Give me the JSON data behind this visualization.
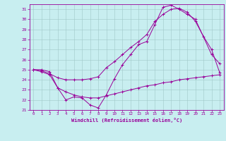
{
  "xlabel": "Windchill (Refroidissement éolien,°C)",
  "bg_color": "#c8eef0",
  "grid_color": "#a0c8c8",
  "line_color": "#990099",
  "xlim_min": -0.5,
  "xlim_max": 23.5,
  "ylim_min": 21.0,
  "ylim_max": 31.5,
  "yticks": [
    21,
    22,
    23,
    24,
    25,
    26,
    27,
    28,
    29,
    30,
    31
  ],
  "xticks": [
    0,
    1,
    2,
    3,
    4,
    5,
    6,
    7,
    8,
    9,
    10,
    11,
    12,
    13,
    14,
    15,
    16,
    17,
    18,
    19,
    20,
    21,
    22,
    23
  ],
  "lines": [
    {
      "x": [
        0,
        1,
        2,
        3,
        4,
        5,
        6,
        7,
        8,
        9,
        10,
        11,
        12,
        13,
        14,
        15,
        16,
        17,
        18,
        19,
        20,
        22,
        23
      ],
      "y": [
        25.0,
        24.8,
        24.5,
        23.2,
        22.0,
        22.3,
        22.2,
        21.5,
        21.2,
        22.5,
        24.1,
        25.5,
        26.5,
        27.5,
        27.8,
        29.5,
        31.2,
        31.4,
        31.0,
        30.5,
        30.0,
        26.5,
        25.6
      ]
    },
    {
      "x": [
        0,
        1,
        2,
        3,
        4,
        5,
        6,
        7,
        8,
        9,
        10,
        11,
        12,
        13,
        14,
        15,
        16,
        17,
        18,
        19,
        20,
        21,
        22,
        23
      ],
      "y": [
        25.0,
        24.9,
        24.6,
        24.2,
        24.0,
        24.0,
        24.0,
        24.1,
        24.3,
        25.2,
        25.8,
        26.5,
        27.2,
        27.8,
        28.5,
        29.8,
        30.5,
        31.0,
        31.1,
        30.7,
        29.8,
        28.3,
        27.0,
        24.7
      ]
    },
    {
      "x": [
        0,
        1,
        2,
        3,
        4,
        5,
        6,
        7,
        8,
        9,
        10,
        11,
        12,
        13,
        14,
        15,
        16,
        17,
        18,
        19,
        20,
        21,
        22,
        23
      ],
      "y": [
        25.0,
        25.0,
        24.8,
        23.2,
        22.8,
        22.5,
        22.3,
        22.2,
        22.2,
        22.4,
        22.6,
        22.8,
        23.0,
        23.2,
        23.4,
        23.5,
        23.7,
        23.8,
        24.0,
        24.1,
        24.2,
        24.3,
        24.4,
        24.5
      ]
    }
  ]
}
